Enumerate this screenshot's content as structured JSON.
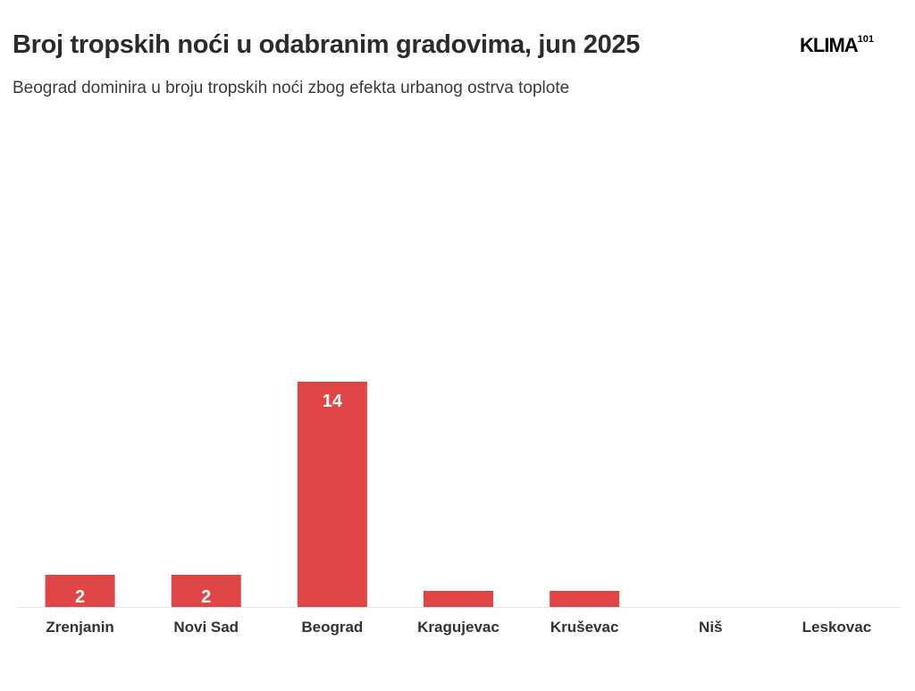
{
  "header": {
    "title": "Broj tropskih noći u odabranim gradovima, jun 2025",
    "subtitle": "Beograd dominira u broju tropskih noći zbog efekta urbanog ostrva toplote"
  },
  "logo": {
    "text": "KLIMA",
    "superscript": "101"
  },
  "chart_data": {
    "type": "bar",
    "title": "Broj tropskih noći u odabranim gradovima, jun 2025",
    "subtitle": "Beograd dominira u broju tropskih noći zbog efekta urbanog ostrva toplote",
    "categories": [
      "Zrenjanin",
      "Novi Sad",
      "Beograd",
      "Kragujevac",
      "Kruševac",
      "Niš",
      "Leskovac"
    ],
    "values": [
      2,
      2,
      14,
      1,
      1,
      0,
      0
    ],
    "data_labels": [
      "2",
      "2",
      "14",
      "",
      "",
      "",
      ""
    ],
    "ylim": [
      0,
      28
    ],
    "grid": false,
    "legend": "none",
    "colors": {
      "bar": "#e04646",
      "baseline": "#e6e6e6"
    }
  }
}
